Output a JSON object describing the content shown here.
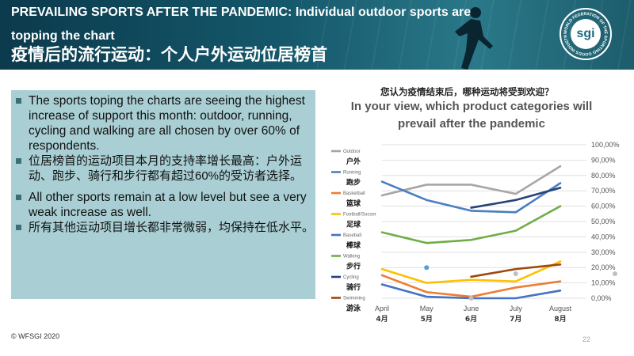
{
  "header": {
    "title_en": "PREVAILING SPORTS AFTER THE PANDEMIC: Individual outdoor sports are topping the chart",
    "title_zh": "疫情后的流行运动：个人户外运动位居榜首",
    "logo_text": "sgi",
    "logo_ring_text": "WORLD FEDERATION OF THE SPORTING GOODS INDUSTRY"
  },
  "bullets": [
    "The sports toping the charts are seeing the highest increase of support this month: outdoor, running, cycling and walking are all chosen by over 60% of respondents.",
    "位居榜首的运动项目本月的支持率增长最高：户外运动、跑步、骑行和步行都有超过60%的受访者选择。",
    "All other sports remain at a low level but see a very weak increase as well.",
    "所有其他运动项目增长都非常微弱，均保持在低水平。"
  ],
  "footer": {
    "copyright": "© WFSGI 2020",
    "page": "22"
  },
  "colors": {
    "Outdoor": "#a6a6a6",
    "Running": "#4a7fc1",
    "Basketball": "#ed7d31",
    "Football/Soccer": "#ffc000",
    "Baseball": "#4472c4",
    "Walking": "#70ad47",
    "Cycling": "#264478",
    "Swimming": "#9e480e"
  },
  "chart_data": {
    "type": "line",
    "title_zh": "您认为疫情结束后，哪种运动将受到欢迎？",
    "title": "In your view, which product categories will prevail after the pandemic",
    "categories": [
      "April",
      "May",
      "June",
      "July",
      "August"
    ],
    "categories_zh": [
      "4月",
      "5月",
      "6月",
      "7月",
      "8月"
    ],
    "ylim": [
      0,
      1
    ],
    "yticks": [
      "0,00%",
      "10,00%",
      "20,00%",
      "30,00%",
      "40,00%",
      "50,00%",
      "60,00%",
      "70,00%",
      "80,00%",
      "90,00%",
      "100,00%"
    ],
    "grid": true,
    "legend_position": "left",
    "series": [
      {
        "name": "Outdoor",
        "name_zh": "户外",
        "values": [
          0.67,
          0.74,
          0.74,
          0.68,
          0.86
        ]
      },
      {
        "name": "Running",
        "name_zh": "跑步",
        "values": [
          0.76,
          0.64,
          0.57,
          0.56,
          0.75
        ]
      },
      {
        "name": "Basketball",
        "name_zh": "篮球",
        "values": [
          0.15,
          0.04,
          0.01,
          0.07,
          0.11
        ]
      },
      {
        "name": "Football/Soccer",
        "name_zh": "足球",
        "values": [
          0.19,
          0.1,
          0.12,
          0.11,
          0.24
        ]
      },
      {
        "name": "Baseball",
        "name_zh": "棒球",
        "values": [
          0.09,
          0.01,
          0.0,
          0.0,
          0.05
        ]
      },
      {
        "name": "Walking",
        "name_zh": "步行",
        "values": [
          0.43,
          0.36,
          0.38,
          0.44,
          0.6
        ]
      },
      {
        "name": "Cycling",
        "name_zh": "骑行",
        "values": [
          null,
          null,
          0.59,
          0.64,
          0.72
        ]
      },
      {
        "name": "Swimming",
        "name_zh": "游泳",
        "values": [
          null,
          null,
          0.14,
          0.19,
          0.22
        ]
      }
    ],
    "points": [
      {
        "x": "May",
        "y": 0.2
      },
      {
        "x": "June",
        "y": 0.0
      },
      {
        "x": "July",
        "y": 0.16
      },
      {
        "x": "August",
        "y": 0.16
      }
    ]
  }
}
